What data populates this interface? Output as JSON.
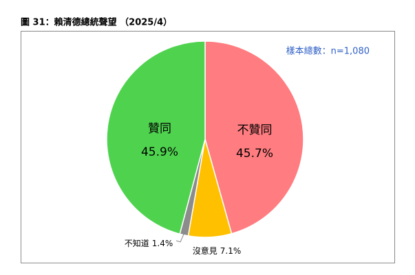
{
  "chart_data": {
    "type": "pie",
    "title": "圖 31：賴清德總統聲望 （2025/4）",
    "annotation": "樣本總數：n=1,080",
    "categories": [
      "不贊同",
      "沒意見",
      "不知道",
      "贊同"
    ],
    "values": [
      45.7,
      7.1,
      1.4,
      45.9
    ],
    "value_labels": [
      "45.7%",
      "7.1%",
      "1.4%",
      "45.9%"
    ],
    "colors": [
      "#ff7c80",
      "#ffc000",
      "#8c8c8c",
      "#4fd34f"
    ]
  }
}
